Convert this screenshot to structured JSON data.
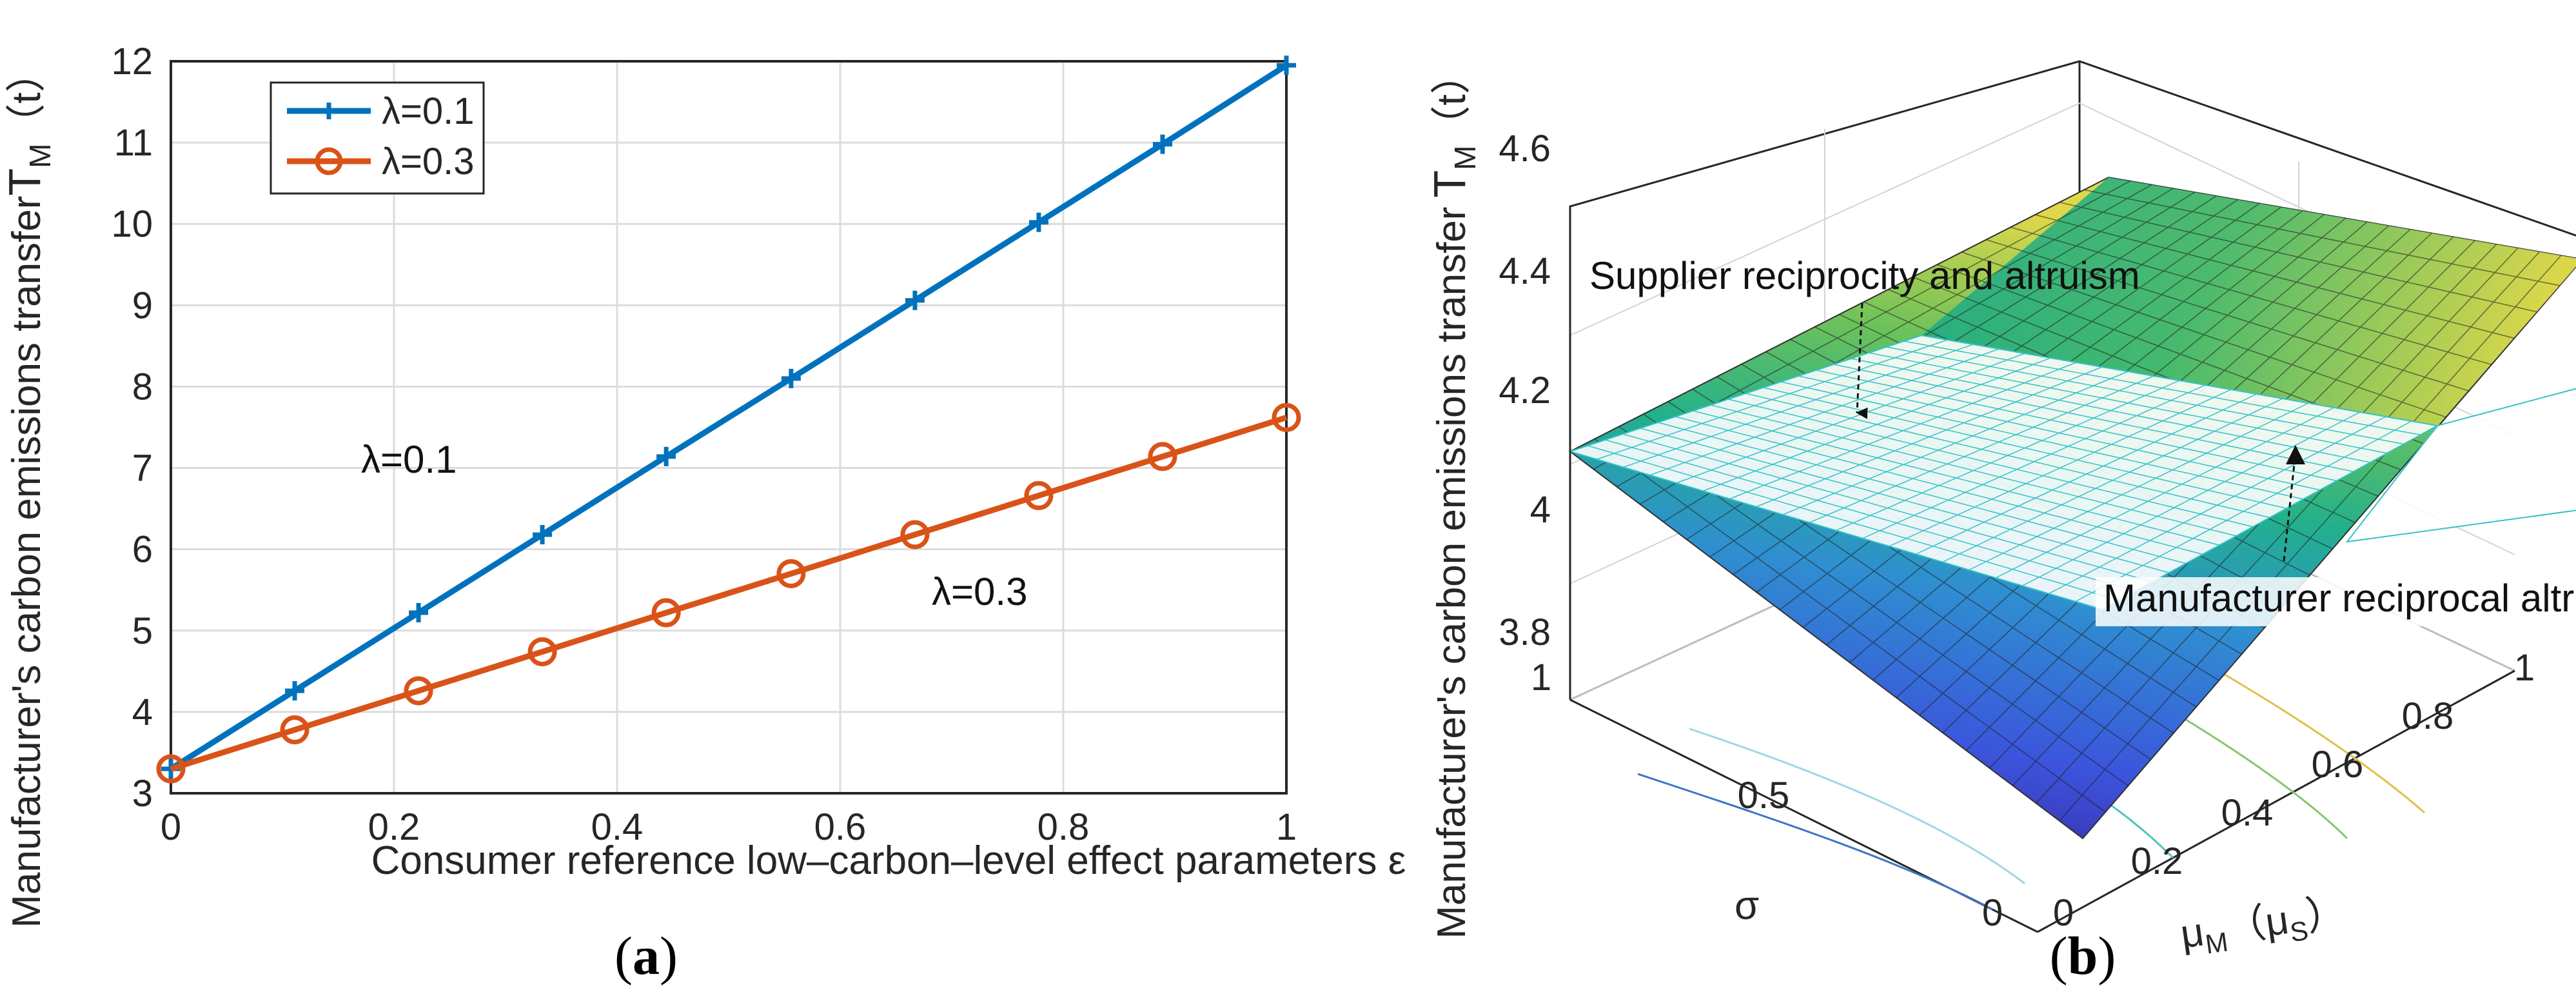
{
  "chart_data": [
    {
      "type": "line",
      "panel_label": "(a)",
      "caption": {
        "open": "(",
        "letter": "a",
        "close": ")"
      },
      "xlabel": "Consumer reference low–carbon–level effect parameters ε",
      "ylabel": "Manufacturer's carbon emissions transfer",
      "ylabel_main": "T",
      "ylabel_sub": "M",
      "ylabel_suffix": "（t）",
      "xlim": [
        0,
        1
      ],
      "ylim": [
        3,
        12
      ],
      "xticks": [
        "0",
        "0.2",
        "0.4",
        "0.6",
        "0.8",
        "1"
      ],
      "yticks": [
        "3",
        "4",
        "5",
        "6",
        "7",
        "8",
        "9",
        "10",
        "11",
        "12"
      ],
      "grid": true,
      "legend_position": "top-left",
      "x": [
        0,
        0.111,
        0.222,
        0.333,
        0.444,
        0.556,
        0.667,
        0.778,
        0.889,
        1
      ],
      "series": [
        {
          "name": "λ=0.1",
          "color": "#0072BD",
          "marker": "plus",
          "values": [
            3.3,
            4.26,
            5.22,
            6.18,
            7.14,
            8.1,
            9.06,
            10.02,
            10.98,
            11.95
          ]
        },
        {
          "name": "λ=0.3",
          "color": "#D95319",
          "marker": "circle",
          "values": [
            3.3,
            3.78,
            4.26,
            4.74,
            5.22,
            5.7,
            6.18,
            6.66,
            7.14,
            7.62
          ]
        }
      ],
      "annotations": [
        "λ=0.1",
        "λ=0.3"
      ]
    },
    {
      "type": "surface",
      "panel_label": "(b)",
      "caption": {
        "open": "(",
        "letter": "b",
        "close": ")"
      },
      "zlabel": "Manufacturer's carbon emissions transfer",
      "zlabel_main": "T",
      "zlabel_sub": "M",
      "zlabel_suffix": "（t）",
      "xlabel": "σ",
      "ylabel_main": "μ",
      "ylabel_sub": "M",
      "ylabel_paren_open": "（μ",
      "ylabel_paren_sub": "S",
      "ylabel_paren_close": "）",
      "zlim": [
        3.8,
        4.6
      ],
      "zticks": [
        "3.8",
        "4",
        "4.2",
        "4.4",
        "4.6"
      ],
      "sigma_ticks": [
        "0",
        "0.5",
        "1"
      ],
      "mu_ticks": [
        "0",
        "0.2",
        "0.4",
        "0.6",
        "0.8",
        "1"
      ],
      "surfaces": [
        {
          "name": "Supplier reciprocity and altruism",
          "style": "filled",
          "z_corners": {
            "sigma0_mu0": 3.83,
            "sigma1_mu0": 4.12,
            "sigma1_mu1": 4.53,
            "sigma0_mu1": 4.48
          }
        },
        {
          "name": "Manufacturer reciprocal altruism",
          "style": "mesh",
          "z_corners": {
            "sigma0_mu0": 4.28,
            "sigma1_mu0": 4.12,
            "sigma1_mu1": 4.22,
            "sigma0_mu1": 4.3
          }
        }
      ],
      "annotations": [
        "Supplier reciprocity and altruism",
        "Manufacturer reciprocal altruism"
      ]
    }
  ]
}
